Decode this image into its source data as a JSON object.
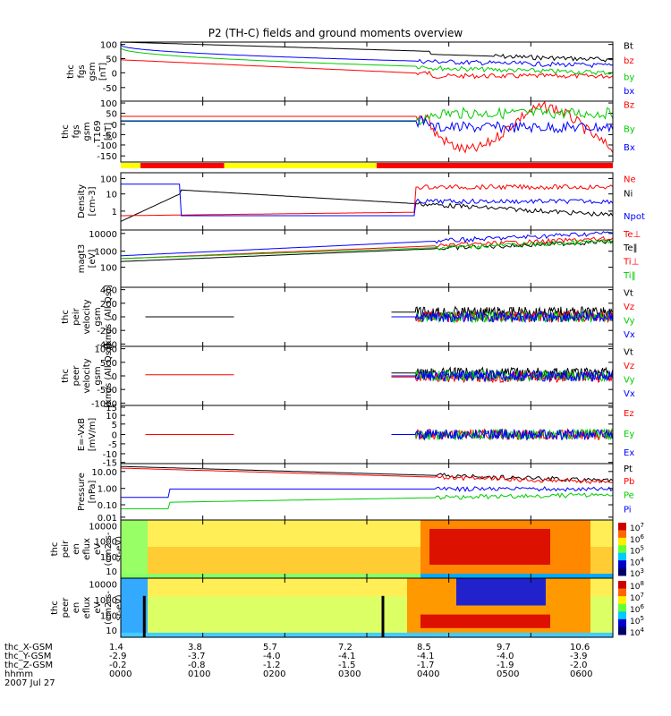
{
  "title": "P2 (TH-C) fields and ground moments overview",
  "colors": {
    "black": "#000000",
    "red": "#ff0000",
    "green": "#00cc00",
    "blue": "#0000ff",
    "yellow": "#ffff00"
  },
  "chart_data": {
    "type": "line",
    "panels": [
      {
        "id": "fgs",
        "ylabel": [
          "thc",
          "fgs",
          "gsm",
          "[nT]"
        ],
        "yticks": [
          "100",
          "50",
          "0",
          "-50"
        ],
        "yrange": [
          -80,
          110
        ],
        "legend": [
          {
            "text": "Bt",
            "color": "black"
          },
          {
            "text": "bz",
            "color": "red"
          },
          {
            "text": "by",
            "color": "green"
          },
          {
            "text": "bx",
            "color": "blue"
          }
        ]
      },
      {
        "id": "fgs_t169",
        "ylabel": [
          "thc",
          "fgs",
          "gsm",
          "T169",
          "[nT]"
        ],
        "yticks": [
          "100",
          "50",
          "0",
          "-50",
          "-100",
          "-150"
        ],
        "yrange": [
          -180,
          110
        ],
        "legend": [
          {
            "text": "Bz",
            "color": "red"
          },
          {
            "text": "By",
            "color": "green"
          },
          {
            "text": "Bx",
            "color": "blue"
          }
        ]
      },
      {
        "id": "density",
        "ylabel": [
          "Density",
          "[cm-3]"
        ],
        "yticks": [
          "100",
          "10",
          "1"
        ],
        "log": true,
        "legend": [
          {
            "text": "Ne",
            "color": "red"
          },
          {
            "text": "Ni",
            "color": "black"
          },
          {
            "text": "Npot",
            "color": "blue"
          }
        ]
      },
      {
        "id": "temp",
        "ylabel": [
          "magt3",
          "[eV]"
        ],
        "yticks": [
          "10000",
          "1000",
          "100"
        ],
        "log": true,
        "legend": [
          {
            "text": "Te⊥",
            "color": "red"
          },
          {
            "text": "Te‖",
            "color": "black"
          },
          {
            "text": "Ti⊥",
            "color": "red"
          },
          {
            "text": "Ti‖",
            "color": "green"
          }
        ]
      },
      {
        "id": "peir_v",
        "ylabel": [
          "thc",
          "peir",
          "velocity",
          "gsm",
          "[km/s (All Qs)]"
        ],
        "yticks": [
          "400",
          "200",
          "0",
          "-200",
          "-400"
        ],
        "yrange": [
          -420,
          420
        ],
        "legend": [
          {
            "text": "Vt",
            "color": "black"
          },
          {
            "text": "Vz",
            "color": "red"
          },
          {
            "text": "Vy",
            "color": "green"
          },
          {
            "text": "Vx",
            "color": "blue"
          }
        ]
      },
      {
        "id": "peer_v",
        "ylabel": [
          "thc",
          "peer",
          "velocity",
          "gsm",
          "[km/s (All Qs)]"
        ],
        "yticks": [
          "1000",
          "500",
          "0",
          "-500",
          "-1000"
        ],
        "yrange": [
          -1050,
          1050
        ],
        "legend": [
          {
            "text": "Vt",
            "color": "black"
          },
          {
            "text": "Vz",
            "color": "red"
          },
          {
            "text": "Vy",
            "color": "green"
          },
          {
            "text": "Vx",
            "color": "blue"
          }
        ]
      },
      {
        "id": "exb",
        "ylabel": [
          "E=-VxB",
          "[mV/m]"
        ],
        "yticks": [
          "15",
          "10",
          "5",
          "0",
          "-5",
          "-10",
          "-15"
        ],
        "yrange": [
          -16,
          16
        ],
        "legend": [
          {
            "text": "Ez",
            "color": "red"
          },
          {
            "text": "Ey",
            "color": "green"
          },
          {
            "text": "Ex",
            "color": "blue"
          }
        ]
      },
      {
        "id": "pressure",
        "ylabel": [
          "Pressure",
          "[nPa]"
        ],
        "yticks": [
          "10.00",
          "1.00",
          "0.10",
          "0.01"
        ],
        "log": true,
        "legend": [
          {
            "text": "Pt",
            "color": "black"
          },
          {
            "text": "Pb",
            "color": "red"
          },
          {
            "text": "Pe",
            "color": "green"
          },
          {
            "text": "Pi",
            "color": "blue"
          }
        ]
      },
      {
        "id": "peir_spec",
        "type": "heatmap",
        "ylabel": [
          "thc",
          "peir",
          "en",
          "eflux",
          "eV",
          "(cm2-s-",
          "sr-eV)"
        ],
        "yticks": [
          "10000",
          "1000",
          "100",
          "10"
        ],
        "colorbar": [
          "10^7",
          "10^6",
          "10^5",
          "10^4",
          "10^3"
        ]
      },
      {
        "id": "peer_spec",
        "type": "heatmap",
        "ylabel": [
          "thc",
          "peer",
          "en",
          "eflux",
          "eV",
          "(cm2-s-",
          "sr-eV)"
        ],
        "yticks": [
          "10000",
          "1000",
          "100",
          "10"
        ],
        "colorbar": [
          "10^8",
          "10^7",
          "10^6",
          "10^5",
          "10^4"
        ]
      }
    ],
    "xaxis": {
      "rows": [
        {
          "label": "thc_X-GSM",
          "values": [
            "1.4",
            "3.8",
            "5.7",
            "7.2",
            "8.5",
            "9.7",
            "10.6"
          ]
        },
        {
          "label": "thc_Y-GSM",
          "values": [
            "-2.9",
            "-3.7",
            "-4.0",
            "-4.1",
            "-4.1",
            "-4.0",
            "-3.9"
          ]
        },
        {
          "label": "thc_Z-GSM",
          "values": [
            "-0.2",
            "-0.8",
            "-1.2",
            "-1.5",
            "-1.7",
            "-1.9",
            "-2.0"
          ]
        },
        {
          "label": "hhmm",
          "values": [
            "0000",
            "0100",
            "0200",
            "0300",
            "0400",
            "0500",
            "0600"
          ]
        }
      ],
      "date": "2007 Jul 27"
    }
  }
}
